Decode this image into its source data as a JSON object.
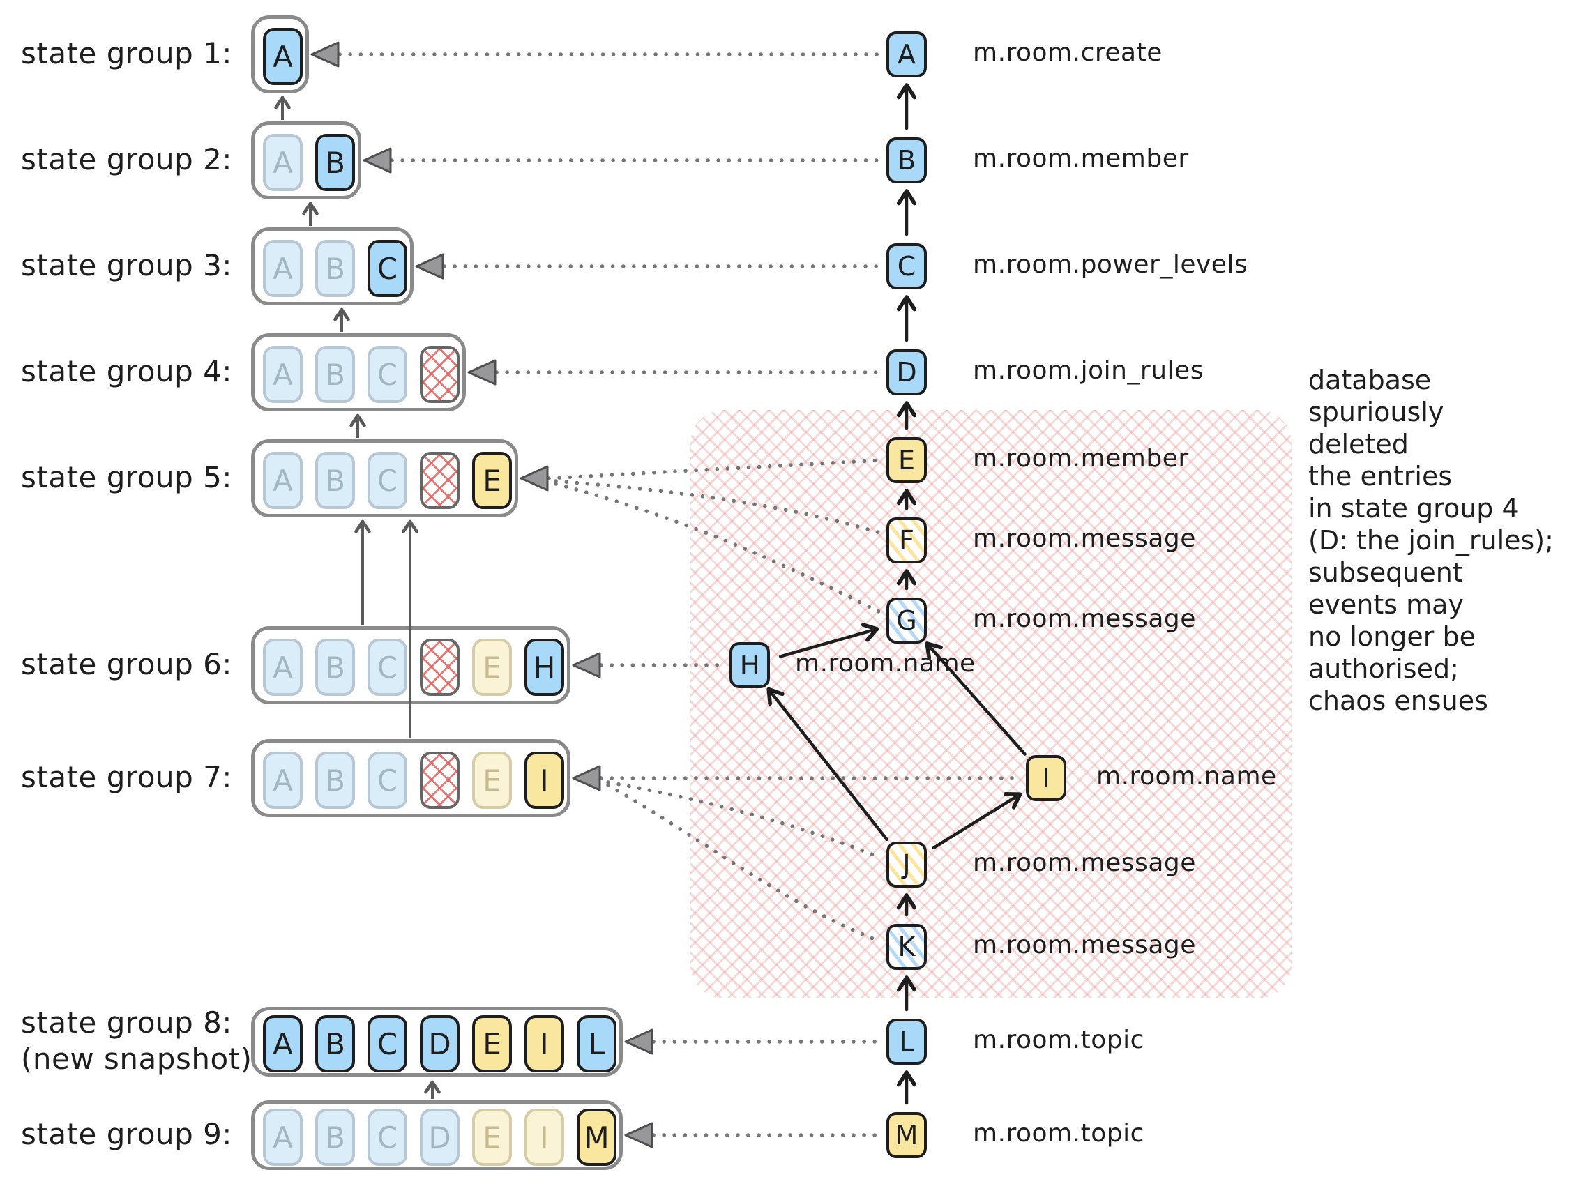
{
  "state_groups": [
    {
      "label": "state group 1:",
      "sublabel": "",
      "chips": [
        {
          "letter": "A",
          "style": "blue-new"
        }
      ]
    },
    {
      "label": "state group 2:",
      "sublabel": "",
      "chips": [
        {
          "letter": "A",
          "style": "blue-faded"
        },
        {
          "letter": "B",
          "style": "blue-new"
        }
      ]
    },
    {
      "label": "state group 3:",
      "sublabel": "",
      "chips": [
        {
          "letter": "A",
          "style": "blue-faded"
        },
        {
          "letter": "B",
          "style": "blue-faded"
        },
        {
          "letter": "C",
          "style": "blue-new"
        }
      ]
    },
    {
      "label": "state group 4:",
      "sublabel": "",
      "chips": [
        {
          "letter": "A",
          "style": "blue-faded"
        },
        {
          "letter": "B",
          "style": "blue-faded"
        },
        {
          "letter": "C",
          "style": "blue-faded"
        },
        {
          "letter": "",
          "style": "deleted"
        }
      ]
    },
    {
      "label": "state group 5:",
      "sublabel": "",
      "chips": [
        {
          "letter": "A",
          "style": "blue-faded"
        },
        {
          "letter": "B",
          "style": "blue-faded"
        },
        {
          "letter": "C",
          "style": "blue-faded"
        },
        {
          "letter": "",
          "style": "deleted"
        },
        {
          "letter": "E",
          "style": "yellow-new"
        }
      ]
    },
    {
      "label": "state group 6:",
      "sublabel": "",
      "chips": [
        {
          "letter": "A",
          "style": "blue-faded"
        },
        {
          "letter": "B",
          "style": "blue-faded"
        },
        {
          "letter": "C",
          "style": "blue-faded"
        },
        {
          "letter": "",
          "style": "deleted"
        },
        {
          "letter": "E",
          "style": "yellow-faded"
        },
        {
          "letter": "H",
          "style": "blue-new"
        }
      ]
    },
    {
      "label": "state group 7:",
      "sublabel": "",
      "chips": [
        {
          "letter": "A",
          "style": "blue-faded"
        },
        {
          "letter": "B",
          "style": "blue-faded"
        },
        {
          "letter": "C",
          "style": "blue-faded"
        },
        {
          "letter": "",
          "style": "deleted"
        },
        {
          "letter": "E",
          "style": "yellow-faded"
        },
        {
          "letter": "I",
          "style": "yellow-new"
        }
      ]
    },
    {
      "label": "state group 8:",
      "sublabel": "(new snapshot)",
      "chips": [
        {
          "letter": "A",
          "style": "blue-new"
        },
        {
          "letter": "B",
          "style": "blue-new"
        },
        {
          "letter": "C",
          "style": "blue-new"
        },
        {
          "letter": "D",
          "style": "blue-new"
        },
        {
          "letter": "E",
          "style": "yellow-new"
        },
        {
          "letter": "I",
          "style": "yellow-new"
        },
        {
          "letter": "L",
          "style": "blue-new"
        }
      ]
    },
    {
      "label": "state group 9:",
      "sublabel": "",
      "chips": [
        {
          "letter": "A",
          "style": "blue-faded"
        },
        {
          "letter": "B",
          "style": "blue-faded"
        },
        {
          "letter": "C",
          "style": "blue-faded"
        },
        {
          "letter": "D",
          "style": "blue-faded"
        },
        {
          "letter": "E",
          "style": "yellow-faded"
        },
        {
          "letter": "I",
          "style": "yellow-faded"
        },
        {
          "letter": "M",
          "style": "yellow-new"
        }
      ]
    }
  ],
  "events": [
    {
      "id": "A",
      "type": "m.room.create",
      "style": "blue"
    },
    {
      "id": "B",
      "type": "m.room.member",
      "style": "blue"
    },
    {
      "id": "C",
      "type": "m.room.power_levels",
      "style": "blue"
    },
    {
      "id": "D",
      "type": "m.room.join_rules",
      "style": "blue"
    },
    {
      "id": "E",
      "type": "m.room.member",
      "style": "yellow"
    },
    {
      "id": "F",
      "type": "m.room.message",
      "style": "striped-yellow"
    },
    {
      "id": "G",
      "type": "m.room.message",
      "style": "striped-blue"
    },
    {
      "id": "H",
      "type": "m.room.name",
      "style": "blue"
    },
    {
      "id": "I",
      "type": "m.room.name",
      "style": "yellow"
    },
    {
      "id": "J",
      "type": "m.room.message",
      "style": "striped-yellow"
    },
    {
      "id": "K",
      "type": "m.room.message",
      "style": "striped-blue"
    },
    {
      "id": "L",
      "type": "m.room.topic",
      "style": "blue"
    },
    {
      "id": "M",
      "type": "m.room.topic",
      "style": "yellow"
    }
  ],
  "dag_edges": [
    [
      "B",
      "A"
    ],
    [
      "C",
      "B"
    ],
    [
      "D",
      "C"
    ],
    [
      "E",
      "D"
    ],
    [
      "F",
      "E"
    ],
    [
      "G",
      "F"
    ],
    [
      "H",
      "G"
    ],
    [
      "I",
      "G"
    ],
    [
      "J",
      "H"
    ],
    [
      "J",
      "I"
    ],
    [
      "K",
      "J"
    ],
    [
      "L",
      "K"
    ],
    [
      "M",
      "L"
    ]
  ],
  "state_links": {
    "direct": [
      [
        "A",
        0
      ],
      [
        "B",
        1
      ],
      [
        "C",
        2
      ],
      [
        "D",
        3
      ],
      [
        "E",
        4
      ],
      [
        "H",
        5
      ],
      [
        "I",
        6
      ],
      [
        "L",
        7
      ],
      [
        "M",
        8
      ]
    ],
    "curved": [
      [
        "F",
        4
      ],
      [
        "G",
        4
      ],
      [
        "J",
        6
      ],
      [
        "K",
        6
      ]
    ]
  },
  "annotation": {
    "lines": [
      "database",
      "spuriously",
      "deleted",
      "the entries",
      "in state group 4",
      "(D: the join_rules);",
      "subsequent",
      "events may",
      "no longer be",
      "authorised;",
      "chaos ensues"
    ]
  },
  "colors": {
    "ink": "#1e1e1e",
    "box_border": "#8a8a8a",
    "blue": "#a9d9f9",
    "yellow": "#f9e7a0",
    "faded_blue": "#dcedfa",
    "faded_yellow": "#faf3d6",
    "red_hatch": "#e0706c",
    "dotted": "#767676",
    "gray_arrow": "#5a5a5a"
  }
}
